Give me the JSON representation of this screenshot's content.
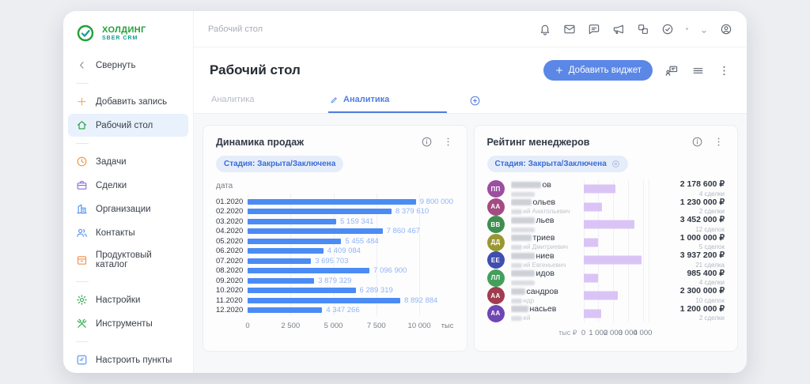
{
  "brand": {
    "name": "ХОЛДИНГ",
    "product": "SBER CRM"
  },
  "sidebar": {
    "collapse_label": "Свернуть",
    "items": [
      {
        "type": "divider"
      },
      {
        "label": "Добавить запись",
        "icon": "plus",
        "color": "#f0b73a"
      },
      {
        "label": "Рабочий стол",
        "icon": "home",
        "color": "#21a038",
        "active": true
      },
      {
        "type": "divider"
      },
      {
        "label": "Задачи",
        "icon": "clock",
        "color": "#f0953f"
      },
      {
        "label": "Сделки",
        "icon": "briefcase",
        "color": "#8a6fd8"
      },
      {
        "label": "Организации",
        "icon": "building",
        "color": "#4f8df0"
      },
      {
        "label": "Контакты",
        "icon": "users",
        "color": "#4f8df0"
      },
      {
        "label": "Продуктовый каталог",
        "icon": "box",
        "color": "#f0914f"
      },
      {
        "type": "divider"
      },
      {
        "label": "Настройки",
        "icon": "gear",
        "color": "#2fa84f"
      },
      {
        "label": "Инструменты",
        "icon": "tools",
        "color": "#2fa84f"
      },
      {
        "type": "divider"
      },
      {
        "label": "Настроить пункты",
        "icon": "configure",
        "color": "#4f8df0"
      }
    ]
  },
  "topbar": {
    "breadcrumb": "Рабочий стол",
    "icons": [
      "bell",
      "mail",
      "comment",
      "megaphone",
      "apps",
      "assistant"
    ]
  },
  "header": {
    "title": "Рабочий стол",
    "add_widget_label": "Добавить виджет"
  },
  "tabs": [
    {
      "label": "Аналитика",
      "active": false
    },
    {
      "label": "Аналитика",
      "active": true
    }
  ],
  "widgets": {
    "sales": {
      "title": "Динамика продаж",
      "filter_badge": "Стадия: Закрыта/Заключена",
      "axis_title": "дата",
      "unit_label": "тыс",
      "chart_data": {
        "type": "bar",
        "orientation": "horizontal",
        "categories": [
          "01.2020",
          "02.2020",
          "03.2020",
          "04.2020",
          "05.2020",
          "06.2020",
          "07.2020",
          "08.2020",
          "09.2020",
          "10.2020",
          "11.2020",
          "12.2020"
        ],
        "values_rub": [
          9800000,
          8379610,
          5159341,
          7860467,
          5455484,
          4409084,
          3695703,
          7096900,
          3879329,
          6289319,
          8892884,
          4347266
        ],
        "value_labels": [
          "9 800 000",
          "8 379 610",
          "5 159 341",
          "7 860 467",
          "5 455 484",
          "4 409 084",
          "3 695 703",
          "7 096 900",
          "3 879 329",
          "6 289 319",
          "8 892 884",
          "4 347 266"
        ],
        "x_ticks_thousands": [
          0,
          2500,
          5000,
          7500,
          10000
        ],
        "x_tick_labels": [
          "0",
          "2 500",
          "5 000",
          "7 500",
          "10 000"
        ],
        "axis_max_thousands": 12000,
        "bar_color": "#4b8bf4",
        "grid": true
      }
    },
    "rating": {
      "title": "Рейтинг менеджеров",
      "filter_badge": "Стадия: Закрыта/Заключена",
      "unit_label": "тыс ₽",
      "chart_data": {
        "type": "bar",
        "orientation": "horizontal",
        "x_ticks_thousands": [
          0,
          1000,
          2000,
          3000,
          4000
        ],
        "x_tick_labels": [
          "0",
          "1 000",
          "2 000",
          "3 000",
          "4 000"
        ],
        "axis_max_thousands": 4400,
        "bar_color": "#dac4f5",
        "grid": true,
        "rows": [
          {
            "initials": "ПП",
            "avatar_color": "#9c4fa0",
            "name_visible": "ов",
            "sub_visible": "",
            "value_rub": 2178600,
            "value_label": "2 178 600 ₽",
            "deals": "4 сделки"
          },
          {
            "initials": "АА",
            "avatar_color": "#a34c82",
            "name_visible": "ольев",
            "sub_visible": "ий Анатольевич",
            "value_rub": 1230000,
            "value_label": "1 230 000 ₽",
            "deals": "2 сделки"
          },
          {
            "initials": "ВВ",
            "avatar_color": "#3e8f4f",
            "name_visible": "льев",
            "sub_visible": "",
            "value_rub": 3452000,
            "value_label": "3 452 000 ₽",
            "deals": "12 сделок"
          },
          {
            "initials": "ДД",
            "avatar_color": "#9a9733",
            "name_visible": "триев",
            "sub_visible": "ий Дмитриевич",
            "value_rub": 1000000,
            "value_label": "1 000 000 ₽",
            "deals": "5 сделок"
          },
          {
            "initials": "ЕЕ",
            "avatar_color": "#3f4fb0",
            "name_visible": "ниев",
            "sub_visible": "ий Евгеньевич",
            "value_rub": 3937200,
            "value_label": "3 937 200 ₽",
            "deals": "21 сделка"
          },
          {
            "initials": "ЛЛ",
            "avatar_color": "#43a05a",
            "name_visible": "идов",
            "sub_visible": "",
            "value_rub": 985400,
            "value_label": "985 400 ₽",
            "deals": "4 сделки"
          },
          {
            "initials": "АА",
            "avatar_color": "#a03d50",
            "name_visible": "сандров",
            "sub_visible": "ндр",
            "value_rub": 2300000,
            "value_label": "2 300 000 ₽",
            "deals": "10 сделок"
          },
          {
            "initials": "АА",
            "avatar_color": "#6f46b4",
            "name_visible": "насьев",
            "sub_visible": "ей",
            "value_rub": 1200000,
            "value_label": "1 200 000 ₽",
            "deals": "2 сделки"
          }
        ]
      }
    }
  }
}
